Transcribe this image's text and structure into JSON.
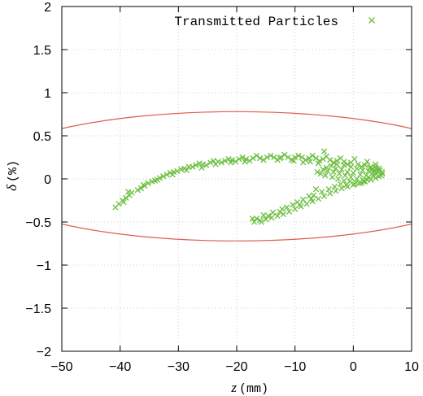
{
  "chart_data": {
    "type": "scatter",
    "xlabel": {
      "symbol": "z",
      "unit": "(mm)"
    },
    "ylabel": {
      "symbol": "δ",
      "unit": "(%)"
    },
    "xlim": [
      -50,
      10
    ],
    "ylim": [
      -2,
      2
    ],
    "x_ticks": [
      -50,
      -40,
      -30,
      -20,
      -10,
      0,
      10
    ],
    "y_ticks": [
      -2,
      -1.5,
      -1,
      -0.5,
      0,
      0.5,
      1,
      1.5,
      2
    ],
    "x_tick_labels": [
      "−50",
      "−40",
      "−30",
      "−20",
      "−10",
      "0",
      "10"
    ],
    "y_tick_labels": [
      "−2",
      "−1.5",
      "−1",
      "−0.5",
      "0",
      "0.5",
      "1",
      "1.5",
      "2"
    ],
    "grid": true,
    "legend": {
      "position": "top-center",
      "entries": [
        {
          "label": "Transmitted Particles",
          "marker": "x",
          "color": "#6cbf3f"
        }
      ]
    },
    "colors": {
      "particles": "#6cbf3f",
      "boundary": "#e05a4a",
      "grid": "#cfcfcf"
    },
    "boundary_ellipse": {
      "center": [
        -20,
        0.03
      ],
      "half_width_mm": 44.5,
      "half_height_pct": 0.75
    },
    "series": [
      {
        "name": "Transmitted Particles",
        "points": [
          [
            -40.8,
            -0.33
          ],
          [
            -39.6,
            -0.25
          ],
          [
            -38.4,
            -0.19
          ],
          [
            -37.0,
            -0.13
          ],
          [
            -35.8,
            -0.08
          ],
          [
            -34.5,
            -0.03
          ],
          [
            -33.2,
            0.01
          ],
          [
            -32.0,
            0.05
          ],
          [
            -30.8,
            0.08
          ],
          [
            -29.5,
            0.11
          ],
          [
            -28.2,
            0.14
          ],
          [
            -27.0,
            0.16
          ],
          [
            -25.8,
            0.17
          ],
          [
            -24.5,
            0.19
          ],
          [
            -23.2,
            0.2
          ],
          [
            -22.0,
            0.21
          ],
          [
            -20.8,
            0.22
          ],
          [
            -19.6,
            0.23
          ],
          [
            -18.4,
            0.23
          ],
          [
            -17.2,
            0.24
          ],
          [
            -16.0,
            0.24
          ],
          [
            -14.8,
            0.25
          ],
          [
            -13.6,
            0.25
          ],
          [
            -12.4,
            0.25
          ],
          [
            -11.2,
            0.25
          ],
          [
            -10.0,
            0.25
          ],
          [
            -8.8,
            0.25
          ],
          [
            -7.6,
            0.24
          ],
          [
            -6.4,
            0.24
          ],
          [
            -5.2,
            0.23
          ],
          [
            -4.0,
            0.22
          ],
          [
            -2.8,
            0.21
          ],
          [
            -1.6,
            0.2
          ],
          [
            -0.4,
            0.19
          ],
          [
            0.8,
            0.17
          ],
          [
            2.0,
            0.16
          ],
          [
            3.0,
            0.14
          ],
          [
            4.0,
            0.12
          ],
          [
            4.6,
            0.1
          ],
          [
            4.9,
            0.08
          ],
          [
            5.0,
            0.06
          ],
          [
            4.8,
            0.04
          ],
          [
            4.4,
            0.03
          ],
          [
            3.8,
            0.01
          ],
          [
            3.0,
            -0.01
          ],
          [
            2.0,
            -0.03
          ],
          [
            1.0,
            -0.05
          ],
          [
            0.0,
            -0.07
          ],
          [
            -1.0,
            -0.09
          ],
          [
            -2.0,
            -0.11
          ],
          [
            -3.0,
            -0.14
          ],
          [
            -4.0,
            -0.17
          ],
          [
            -5.0,
            -0.2
          ],
          [
            -6.0,
            -0.23
          ],
          [
            -7.0,
            -0.26
          ],
          [
            -8.0,
            -0.29
          ],
          [
            -9.0,
            -0.32
          ],
          [
            -10.0,
            -0.35
          ],
          [
            -11.0,
            -0.38
          ],
          [
            -12.0,
            -0.41
          ],
          [
            -13.0,
            -0.43
          ],
          [
            -14.0,
            -0.45
          ],
          [
            -15.0,
            -0.47
          ],
          [
            -16.0,
            -0.48
          ],
          [
            -17.0,
            -0.5
          ],
          [
            -40.2,
            -0.29
          ],
          [
            -39.0,
            -0.22
          ],
          [
            -36.4,
            -0.11
          ],
          [
            -34.0,
            -0.02
          ],
          [
            -31.4,
            0.07
          ],
          [
            -29.0,
            0.12
          ],
          [
            -26.4,
            0.18
          ],
          [
            -24.0,
            0.21
          ],
          [
            -21.4,
            0.23
          ],
          [
            -19.0,
            0.25
          ],
          [
            -16.6,
            0.27
          ],
          [
            -14.2,
            0.27
          ],
          [
            -11.8,
            0.28
          ],
          [
            -9.4,
            0.27
          ],
          [
            -7.0,
            0.27
          ],
          [
            -4.6,
            0.26
          ],
          [
            -2.2,
            0.24
          ],
          [
            0.2,
            0.23
          ],
          [
            2.4,
            0.2
          ],
          [
            3.8,
            0.17
          ],
          [
            -38.0,
            -0.16
          ],
          [
            -35.2,
            -0.05
          ],
          [
            -32.6,
            0.03
          ],
          [
            -30.2,
            0.09
          ],
          [
            -27.6,
            0.14
          ],
          [
            -25.2,
            0.16
          ],
          [
            -22.6,
            0.19
          ],
          [
            -20.2,
            0.2
          ],
          [
            -17.8,
            0.21
          ],
          [
            -15.4,
            0.22
          ],
          [
            -13.0,
            0.22
          ],
          [
            -10.6,
            0.22
          ],
          [
            -8.2,
            0.22
          ],
          [
            -5.8,
            0.21
          ],
          [
            -3.4,
            0.19
          ],
          [
            -1.0,
            0.17
          ],
          [
            1.4,
            0.14
          ],
          [
            3.2,
            0.11
          ],
          [
            -5.0,
            0.32
          ],
          [
            2.8,
            0.13
          ],
          [
            3.6,
            0.1
          ],
          [
            4.2,
            0.09
          ],
          [
            3.4,
            0.07
          ],
          [
            2.6,
            0.09
          ],
          [
            1.6,
            0.1
          ],
          [
            0.6,
            0.12
          ],
          [
            -0.4,
            0.14
          ],
          [
            -1.6,
            0.16
          ],
          [
            -2.8,
            0.17
          ],
          [
            -3.8,
            0.15
          ],
          [
            -4.6,
            0.13
          ],
          [
            -5.2,
            0.11
          ],
          [
            -4.4,
            0.09
          ],
          [
            -3.4,
            0.08
          ],
          [
            -2.4,
            0.06
          ],
          [
            -1.4,
            0.04
          ],
          [
            -0.4,
            0.02
          ],
          [
            0.6,
            0.0
          ],
          [
            1.6,
            -0.01
          ],
          [
            2.6,
            0.02
          ],
          [
            3.4,
            0.04
          ],
          [
            4.0,
            0.06
          ],
          [
            -5.6,
            0.06
          ],
          [
            -6.2,
            0.08
          ],
          [
            -4.8,
            0.04
          ],
          [
            -3.6,
            0.02
          ],
          [
            -2.6,
            0.0
          ],
          [
            -1.6,
            -0.02
          ],
          [
            -0.6,
            -0.03
          ],
          [
            0.4,
            -0.04
          ],
          [
            1.4,
            -0.05
          ],
          [
            -1.0,
            0.08
          ],
          [
            0.0,
            0.07
          ],
          [
            1.2,
            0.05
          ],
          [
            2.2,
            0.04
          ],
          [
            -2.0,
            0.11
          ],
          [
            -3.0,
            0.12
          ],
          [
            4.4,
            0.12
          ],
          [
            3.8,
            0.14
          ],
          [
            -6.8,
            -0.19
          ],
          [
            -8.6,
            -0.24
          ],
          [
            -10.4,
            -0.3
          ],
          [
            -12.2,
            -0.35
          ],
          [
            -13.8,
            -0.39
          ],
          [
            -15.4,
            -0.42
          ],
          [
            -16.6,
            -0.46
          ],
          [
            -5.4,
            -0.15
          ],
          [
            -4.2,
            -0.12
          ],
          [
            -3.2,
            -0.09
          ],
          [
            -6.4,
            -0.12
          ],
          [
            -7.6,
            -0.2
          ],
          [
            -9.6,
            -0.27
          ],
          [
            -11.4,
            -0.33
          ],
          [
            -14.6,
            -0.43
          ],
          [
            -17.3,
            -0.46
          ],
          [
            -15.8,
            -0.5
          ],
          [
            -12.6,
            -0.38
          ],
          [
            -9.2,
            -0.3
          ],
          [
            -7.2,
            -0.23
          ],
          [
            -2.2,
            -0.06
          ],
          [
            -1.2,
            -0.07
          ],
          [
            0.2,
            -0.06
          ],
          [
            1.8,
            -0.03
          ],
          [
            2.4,
            -0.01
          ],
          [
            -6.0,
            0.18
          ],
          [
            -7.4,
            0.2
          ],
          [
            -8.6,
            0.19
          ],
          [
            -10.2,
            0.21
          ],
          [
            -12.6,
            0.24
          ],
          [
            -18.6,
            0.2
          ],
          [
            -21.0,
            0.19
          ],
          [
            -23.6,
            0.17
          ],
          [
            -26.0,
            0.13
          ],
          [
            -28.6,
            0.1
          ],
          [
            -31.0,
            0.05
          ],
          [
            -33.6,
            -0.01
          ],
          [
            -36.0,
            -0.07
          ],
          [
            -38.6,
            -0.15
          ],
          [
            -39.4,
            -0.27
          ]
        ]
      }
    ]
  }
}
